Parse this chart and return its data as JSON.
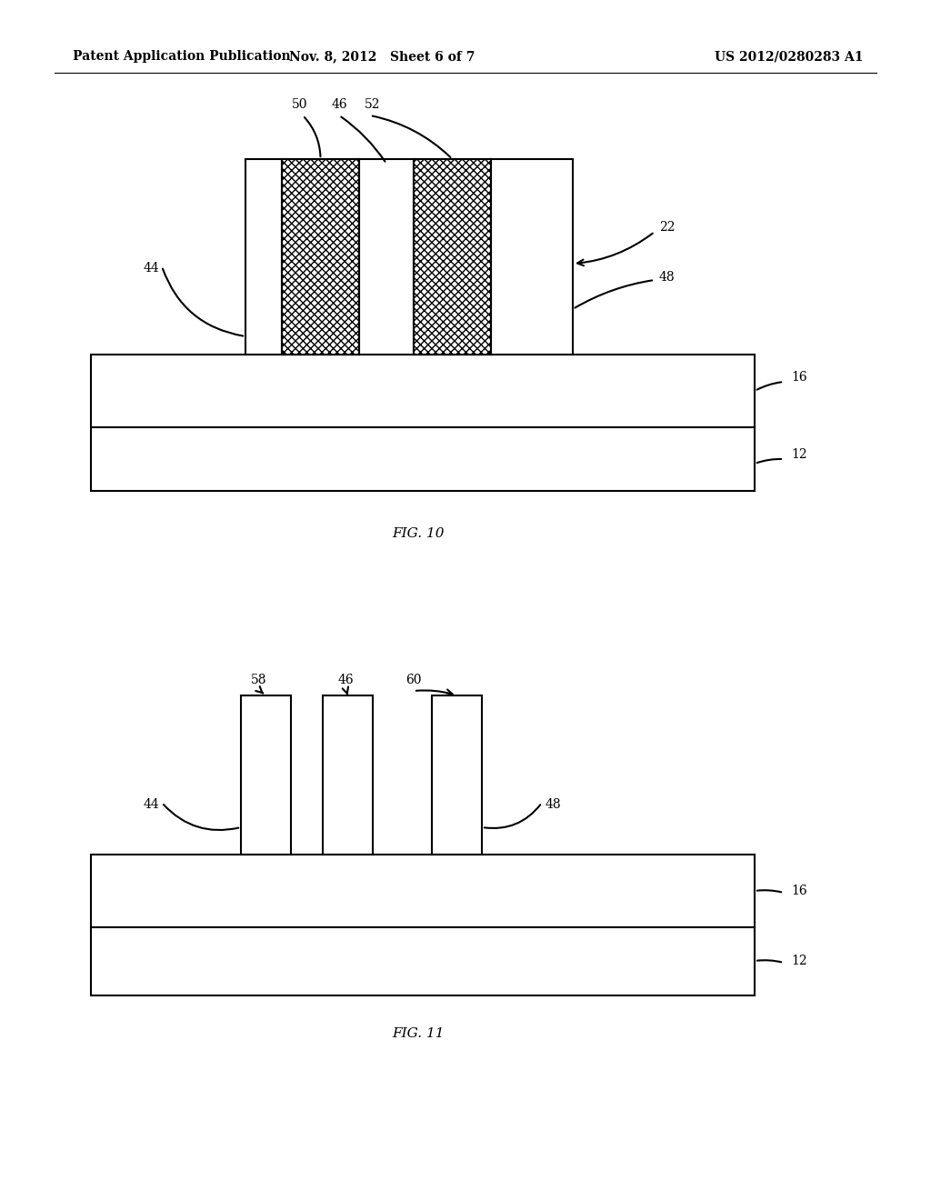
{
  "header_left": "Patent Application Publication",
  "header_mid": "Nov. 8, 2012   Sheet 6 of 7",
  "header_right": "US 2012/0280283 A1",
  "fig10_label": "FIG. 10",
  "fig11_label": "FIG. 11",
  "bg_color": "#ffffff",
  "line_color": "#000000"
}
